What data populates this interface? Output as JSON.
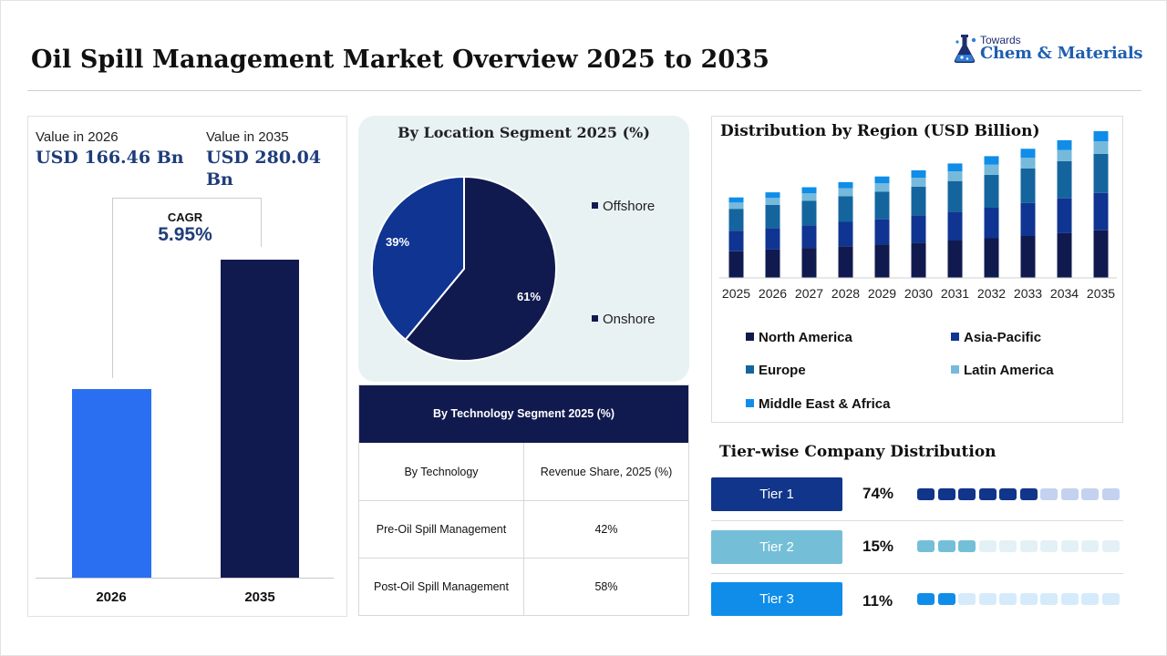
{
  "page": {
    "title": "Oil Spill Management Market Overview 2025 to 2035"
  },
  "logo": {
    "small": "Towards",
    "brand": "Chem & Materials"
  },
  "market_value": {
    "label_2026": "Value in 2026",
    "value_2026": "USD 166.46 Bn",
    "label_2035": "Value in 2035",
    "value_2035": "USD 280.04 Bn",
    "cagr_label": "CAGR",
    "cagr_value": "5.95%",
    "bar_label_2026": "2026",
    "bar_label_2035": "2035"
  },
  "location": {
    "title": "By Location Segment 2025 (%)",
    "legend_offshore": "Offshore",
    "legend_onshore": "Onshore",
    "label_onshore": "61%",
    "label_offshore": "39%"
  },
  "technology_table": {
    "title": "By Technology Segment 2025 (%)",
    "col1": "By Technology",
    "col2": "Revenue Share, 2025 (%)",
    "rows": [
      {
        "tech": "Pre-Oil Spill Management",
        "share": "42%"
      },
      {
        "tech": "Post-Oil Spill Management",
        "share": "58%"
      }
    ]
  },
  "region": {
    "title": "Distribution by Region (USD Billion)",
    "legend": [
      "North America",
      "Asia-Pacific",
      "Europe",
      "Latin America",
      "Middle East & Africa"
    ]
  },
  "tiers": {
    "title": "Tier-wise Company Distribution",
    "items": [
      {
        "label": "Tier 1",
        "pct": "74%",
        "filled": 6,
        "color": "#11358a",
        "light": "#c4d2f0"
      },
      {
        "label": "Tier 2",
        "pct": "15%",
        "filled": 3,
        "color": "#74bfd7",
        "light": "#e3f1f6"
      },
      {
        "label": "Tier 3",
        "pct": "11%",
        "filled": 2,
        "color": "#0f8de8",
        "light": "#d5ebfb"
      }
    ],
    "total_dots": 10
  },
  "chart_data": [
    {
      "type": "bar",
      "categories": [
        "2026",
        "2035"
      ],
      "values": [
        166.46,
        280.04
      ],
      "ylabel": "",
      "ylim": [
        0,
        280.04
      ]
    },
    {
      "type": "pie",
      "title": "By Location Segment 2025 (%)",
      "labels": [
        "Onshore",
        "Offshore"
      ],
      "values": [
        61,
        39
      ],
      "colors": [
        "#111a4e",
        "#0f3491"
      ]
    },
    {
      "type": "table",
      "title": "By Technology Segment 2025 (%)",
      "columns": [
        "By Technology",
        "Revenue Share, 2025 (%)"
      ],
      "rows": [
        [
          "Pre-Oil Spill Management",
          "42%"
        ],
        [
          "Post-Oil Spill Management",
          "58%"
        ]
      ]
    },
    {
      "type": "bar",
      "stacked": true,
      "title": "Distribution by Region (USD Billion)",
      "categories": [
        "2025",
        "2026",
        "2027",
        "2028",
        "2029",
        "2030",
        "2031",
        "2032",
        "2033",
        "2034",
        "2035"
      ],
      "series": [
        {
          "name": "North America",
          "color": "#111a4e",
          "values": [
            47,
            50,
            53,
            56,
            59,
            62,
            66,
            70,
            74,
            79,
            84
          ]
        },
        {
          "name": "Asia-Pacific",
          "color": "#0f3491",
          "values": [
            36,
            38,
            40,
            43,
            45,
            48,
            51,
            54,
            58,
            62,
            66
          ]
        },
        {
          "name": "Europe",
          "color": "#14659e",
          "values": [
            39,
            41,
            43,
            45,
            48,
            51,
            54,
            58,
            61,
            65,
            69
          ]
        },
        {
          "name": "Latin America",
          "color": "#76b9db",
          "values": [
            11,
            12,
            13,
            14,
            15,
            16,
            17,
            18,
            19,
            20,
            22
          ]
        },
        {
          "name": "Middle East & Africa",
          "color": "#0f8de8",
          "values": [
            9,
            10,
            11,
            11,
            12,
            13,
            14,
            15,
            16,
            17,
            18
          ]
        }
      ]
    }
  ]
}
